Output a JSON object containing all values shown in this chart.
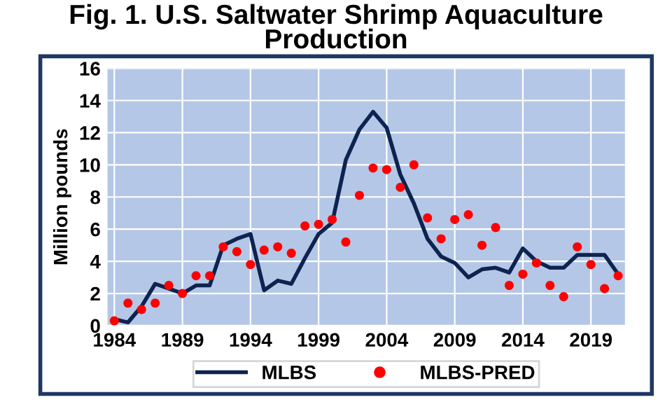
{
  "chart_data": {
    "type": "line",
    "title": "Fig. 1. U.S. Saltwater Shrimp Aquaculture Production",
    "ylabel": "Million pounds",
    "x": [
      1984,
      1985,
      1986,
      1987,
      1988,
      1989,
      1990,
      1991,
      1992,
      1993,
      1994,
      1995,
      1996,
      1997,
      1998,
      1999,
      2000,
      2001,
      2002,
      2003,
      2004,
      2005,
      2006,
      2007,
      2008,
      2009,
      2010,
      2011,
      2012,
      2013,
      2014,
      2015,
      2016,
      2017,
      2018,
      2019,
      2020,
      2021
    ],
    "series": [
      {
        "name": "MLBS",
        "color": "#0d2350",
        "values": [
          0.4,
          0.2,
          1.2,
          2.6,
          2.3,
          2.0,
          2.5,
          2.5,
          5.0,
          5.4,
          5.7,
          2.2,
          2.8,
          2.6,
          4.2,
          5.7,
          6.4,
          10.3,
          12.2,
          13.3,
          12.3,
          9.4,
          7.6,
          5.4,
          4.3,
          3.9,
          3.0,
          3.5,
          3.6,
          3.3,
          4.8,
          4.0,
          3.6,
          3.6,
          4.4,
          4.4,
          4.4,
          3.2
        ]
      },
      {
        "name": "MLBS-PRED",
        "type": "scatter",
        "color": "#ff0000",
        "marker": "circle",
        "values": [
          0.3,
          1.4,
          1.0,
          1.4,
          2.5,
          2.0,
          3.1,
          3.1,
          4.9,
          4.6,
          3.8,
          4.7,
          4.9,
          4.5,
          6.2,
          6.3,
          6.6,
          5.2,
          8.1,
          9.8,
          9.7,
          8.6,
          10.0,
          6.7,
          5.4,
          6.6,
          6.9,
          5.0,
          6.1,
          2.5,
          3.2,
          3.9,
          2.5,
          1.8,
          4.9,
          3.8,
          2.3,
          3.1
        ]
      }
    ],
    "xlim": [
      1983.5,
      2021.5
    ],
    "xticks": [
      1984,
      1989,
      1994,
      1999,
      2004,
      2009,
      2014,
      2019
    ],
    "ylim": [
      0,
      16
    ],
    "yticks": [
      0,
      2,
      4,
      6,
      8,
      10,
      12,
      14,
      16
    ],
    "grid": true,
    "legend": "bottom"
  }
}
